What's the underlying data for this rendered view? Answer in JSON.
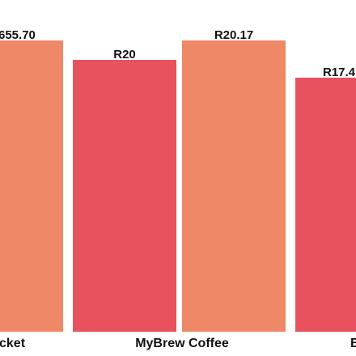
{
  "value_labels": [
    "655.70",
    "R20",
    "R20.17",
    "R17.4"
  ],
  "categories": [
    "cket",
    "MyBrew Coffee",
    "B"
  ]
}
